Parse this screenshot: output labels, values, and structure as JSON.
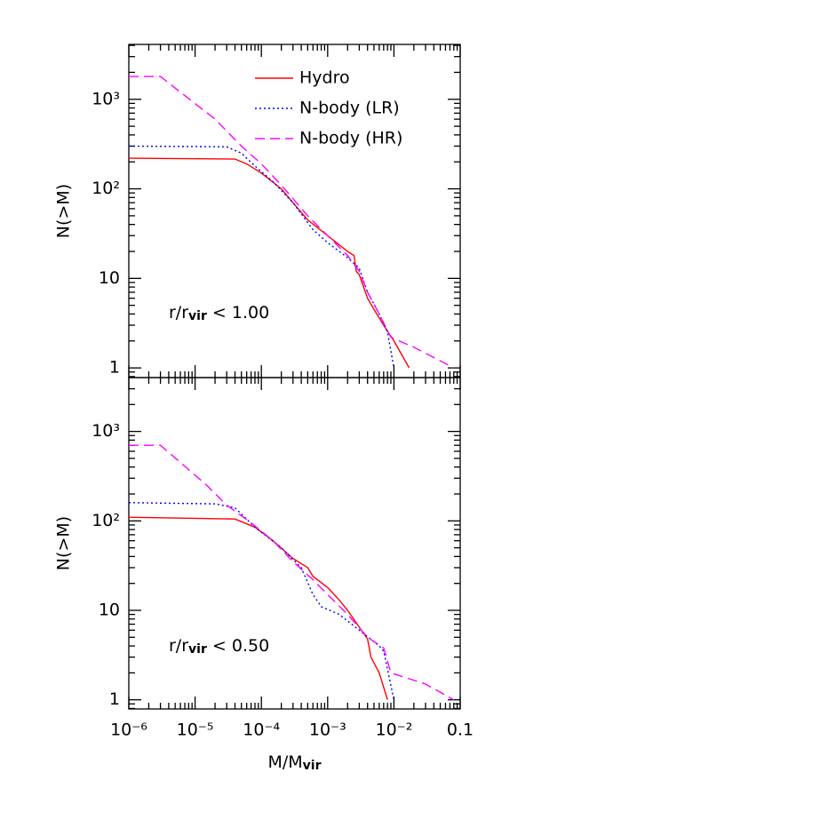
{
  "chart_data": [
    {
      "type": "line",
      "ylabel": "N(>M)",
      "xlim": [
        1e-06,
        0.1
      ],
      "ylim": [
        0.78,
        4100
      ],
      "xlog": true,
      "ylog": true,
      "minor_ticks": true,
      "legend": "upper right",
      "yticks": [
        1,
        10,
        {
          "value": 100,
          "label": "10²"
        },
        {
          "value": 1000,
          "label": "10³"
        }
      ],
      "annotation": {
        "main": "r/r",
        "sub": "vir",
        "rest": "  <  1.00"
      },
      "series": [
        {
          "name": "Hydro",
          "color": "#ff0000",
          "dash": "solid",
          "x": [
            1e-06,
            4e-05,
            6e-05,
            0.0001,
            0.0002,
            0.0003,
            0.0005,
            0.001,
            0.002,
            0.0025,
            0.0027,
            0.003,
            0.004,
            0.005,
            0.007,
            0.01,
            0.017
          ],
          "values": [
            220,
            215,
            190,
            150,
            100,
            70,
            45,
            30,
            20,
            18,
            12,
            11,
            6,
            4.5,
            3,
            2,
            1
          ]
        },
        {
          "name": "N-body (LR)",
          "color": "#0000ff",
          "dash": "dotted",
          "x": [
            1e-06,
            3e-05,
            5e-05,
            8e-05,
            0.00015,
            0.0003,
            0.0006,
            0.001,
            0.002,
            0.003,
            0.004,
            0.006,
            0.008,
            0.01
          ],
          "values": [
            300,
            295,
            250,
            180,
            120,
            70,
            35,
            25,
            17,
            13,
            7,
            4,
            2.5,
            1
          ]
        },
        {
          "name": "N-body (HR)",
          "color": "#ff00ff",
          "dash": "dashed",
          "x": [
            1e-06,
            3e-06,
            6e-06,
            2e-05,
            5e-05,
            0.0001,
            0.0002,
            0.0005,
            0.001,
            0.002,
            0.003,
            0.004,
            0.006,
            0.009,
            0.02,
            0.05,
            0.08
          ],
          "values": [
            1800,
            1800,
            1200,
            600,
            300,
            190,
            110,
            50,
            30,
            18,
            12,
            7,
            4,
            2.2,
            1.7,
            1.2,
            1
          ]
        }
      ]
    },
    {
      "type": "line",
      "ylabel": "N(>M)",
      "xlabel": {
        "main": "M/M",
        "sub": "vir"
      },
      "xlim": [
        1e-06,
        0.1
      ],
      "ylim": [
        0.79,
        4000
      ],
      "xlog": true,
      "ylog": true,
      "minor_ticks": true,
      "xticks": [
        {
          "value": 1e-06,
          "label": "10⁻⁶"
        },
        {
          "value": 1e-05,
          "label": "10⁻⁵"
        },
        {
          "value": 0.0001,
          "label": "10⁻⁴"
        },
        {
          "value": 0.001,
          "label": "10⁻³"
        },
        {
          "value": 0.01,
          "label": "10⁻²"
        },
        0.1
      ],
      "yticks": [
        1,
        10,
        {
          "value": 100,
          "label": "10²"
        },
        {
          "value": 1000,
          "label": "10³"
        }
      ],
      "annotation": {
        "main": "r/r",
        "sub": "vir",
        "rest": "  <  0.50"
      },
      "series": [
        {
          "color": "#ff0000",
          "dash": "solid",
          "x": [
            1e-06,
            4e-05,
            8e-05,
            0.00015,
            0.0003,
            0.0005,
            0.0006,
            0.001,
            0.0015,
            0.002,
            0.003,
            0.004,
            0.0045,
            0.006,
            0.008
          ],
          "values": [
            110,
            105,
            85,
            60,
            38,
            30,
            24,
            18,
            13,
            10,
            6.5,
            4.8,
            3,
            2,
            1
          ]
        },
        {
          "color": "#0000ff",
          "dash": "dotted",
          "x": [
            1e-06,
            2e-05,
            4e-05,
            8e-05,
            0.0002,
            0.0004,
            0.0006,
            0.0008,
            0.0015,
            0.003,
            0.006,
            0.007,
            0.01
          ],
          "values": [
            160,
            155,
            140,
            85,
            50,
            30,
            15,
            11,
            9,
            6,
            4,
            3.5,
            1
          ]
        },
        {
          "color": "#ff00ff",
          "dash": "dashed",
          "x": [
            1e-06,
            3e-06,
            6e-06,
            1.5e-05,
            3e-05,
            7e-05,
            0.00015,
            0.0003,
            0.0006,
            0.001,
            0.002,
            0.004,
            0.007,
            0.009,
            0.03,
            0.08
          ],
          "values": [
            700,
            700,
            450,
            250,
            150,
            95,
            60,
            35,
            22,
            15,
            9,
            5,
            3.8,
            2,
            1.5,
            1
          ]
        }
      ]
    }
  ]
}
